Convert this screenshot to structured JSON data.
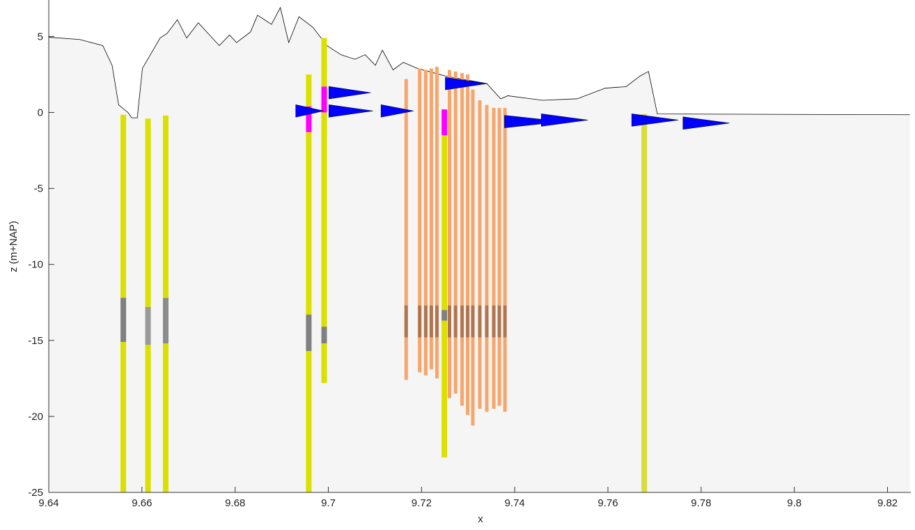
{
  "chart_data": {
    "type": "profile",
    "x_label": "x",
    "y_label": "z (m+NAP)",
    "xlim": [
      9.64,
      9.825
    ],
    "ylim": [
      -25,
      7.4
    ],
    "xticks": [
      9.64,
      9.66,
      9.68,
      9.7,
      9.72,
      9.74,
      9.76,
      9.78,
      9.8,
      9.82
    ],
    "yticks": [
      -25,
      -20,
      -15,
      -10,
      -5,
      0,
      5
    ],
    "surface": {
      "color": "#000000",
      "fill": "#f5f5f5",
      "x": [
        9.64,
        9.6467,
        9.6516,
        9.6536,
        9.655,
        9.657,
        9.6578,
        9.659,
        9.6601,
        9.6639,
        9.6654,
        9.6676,
        9.6696,
        9.6721,
        9.6766,
        9.6788,
        9.6803,
        9.6833,
        9.6848,
        9.6878,
        9.6897,
        9.6915,
        9.6937,
        9.6967,
        9.6997,
        9.7027,
        9.7057,
        9.7079,
        9.7101,
        9.7116,
        9.7139,
        9.7161,
        9.7191,
        9.7251,
        9.734,
        9.737,
        9.7385,
        9.746,
        9.7534,
        9.7594,
        9.7639,
        9.7669,
        9.7687,
        9.7706,
        9.8248
      ],
      "z": [
        4.95,
        4.8,
        4.4,
        3.1,
        0.5,
        0,
        -0.35,
        -0.35,
        2.9,
        4.9,
        5.2,
        6.1,
        4.9,
        5.9,
        4.4,
        5.1,
        4.6,
        5.3,
        6.4,
        5.8,
        6.9,
        4.6,
        6.3,
        5.6,
        4.4,
        3.8,
        3.5,
        3.8,
        3.1,
        4.1,
        2.8,
        3.3,
        2.9,
        2.4,
        1.9,
        0.9,
        1.1,
        0.8,
        0.9,
        1.6,
        1.7,
        2.4,
        2.7,
        -0.1,
        -0.15
      ]
    },
    "cpt": {
      "color": "#f7a66b",
      "dark_color": "#5a3a2a",
      "dark_zone": [
        -12.7,
        -14.8
      ],
      "x": [
        9.7167,
        9.7196,
        9.7209,
        9.7221,
        9.7233,
        9.726,
        9.7273,
        9.7287,
        9.7299,
        9.731,
        9.7325,
        9.734,
        9.7355,
        9.7367,
        9.7379
      ],
      "top": [
        2.2,
        2.9,
        2.8,
        2.9,
        3.0,
        2.8,
        2.7,
        2.6,
        2.5,
        1.5,
        0.8,
        0.5,
        0.3,
        0.3,
        0.3
      ],
      "bottom": [
        -17.6,
        -17.1,
        -17.3,
        -16.9,
        -17.5,
        -18.8,
        -18.5,
        -19.3,
        -19.9,
        -20.6,
        -19.5,
        -19.7,
        -19.5,
        -19.3,
        -19.7
      ]
    },
    "profiles": {
      "color": "#0000ff",
      "x": [
        9.693,
        9.7001,
        9.7001,
        9.7113,
        9.7251,
        9.7378,
        9.7457,
        9.7651,
        9.7761
      ],
      "z": [
        0.1,
        1.3,
        0.1,
        0.1,
        1.9,
        -0.6,
        -0.5,
        -0.5,
        -0.7
      ],
      "length": [
        0.006,
        0.009,
        0.0095,
        0.007,
        0.009,
        0.0125,
        0.01,
        0.01,
        0.01
      ]
    },
    "boreholes": [
      {
        "x": 9.656,
        "layers": [
          {
            "top": -0.15,
            "bottom": -12.2,
            "color": "#dbe000"
          },
          {
            "top": -12.2,
            "bottom": -15.1,
            "color": "#808080"
          },
          {
            "top": -15.1,
            "bottom": -25,
            "color": "#dbe000"
          }
        ]
      },
      {
        "x": 9.6613,
        "layers": [
          {
            "top": -0.4,
            "bottom": -12.8,
            "color": "#dbe000"
          },
          {
            "top": -12.8,
            "bottom": -15.3,
            "color": "#9a9a9a"
          },
          {
            "top": -15.3,
            "bottom": -25,
            "color": "#dbe000"
          }
        ]
      },
      {
        "x": 9.6651,
        "layers": [
          {
            "top": -0.2,
            "bottom": -12.2,
            "color": "#dbe000"
          },
          {
            "top": -12.2,
            "bottom": -15.2,
            "color": "#8c8c8c"
          },
          {
            "top": -15.2,
            "bottom": -25,
            "color": "#dbe000"
          }
        ]
      },
      {
        "x": 9.6958,
        "layers": [
          {
            "top": 2.5,
            "bottom": 0.4,
            "color": "#dbe000"
          },
          {
            "top": 0.4,
            "bottom": -1.3,
            "color": "#ff00ff"
          },
          {
            "top": -1.3,
            "bottom": -13.3,
            "color": "#dbe000"
          },
          {
            "top": -13.3,
            "bottom": -15.7,
            "color": "#808080"
          },
          {
            "top": -15.7,
            "bottom": -25,
            "color": "#dbe000"
          }
        ]
      },
      {
        "x": 9.6991,
        "layers": [
          {
            "top": 4.9,
            "bottom": 1.7,
            "color": "#dbe000"
          },
          {
            "top": 1.7,
            "bottom": 0,
            "color": "#ff00ff"
          },
          {
            "top": 0,
            "bottom": -14.1,
            "color": "#dbe000"
          },
          {
            "top": -14.1,
            "bottom": -15.2,
            "color": "#808080"
          },
          {
            "top": -15.2,
            "bottom": -17.8,
            "color": "#dbe000"
          }
        ]
      },
      {
        "x": 9.7249,
        "layers": [
          {
            "top": 0.2,
            "bottom": -1.5,
            "color": "#ff00ff"
          },
          {
            "top": -1.5,
            "bottom": -13,
            "color": "#dbe000"
          },
          {
            "top": -13,
            "bottom": -13.7,
            "color": "#808080"
          },
          {
            "top": -13.7,
            "bottom": -22.7,
            "color": "#dbe000"
          }
        ]
      },
      {
        "x": 9.7678,
        "layers": [
          {
            "top": -0.1,
            "bottom": -25,
            "color": "#d8dc3c"
          }
        ]
      }
    ]
  }
}
